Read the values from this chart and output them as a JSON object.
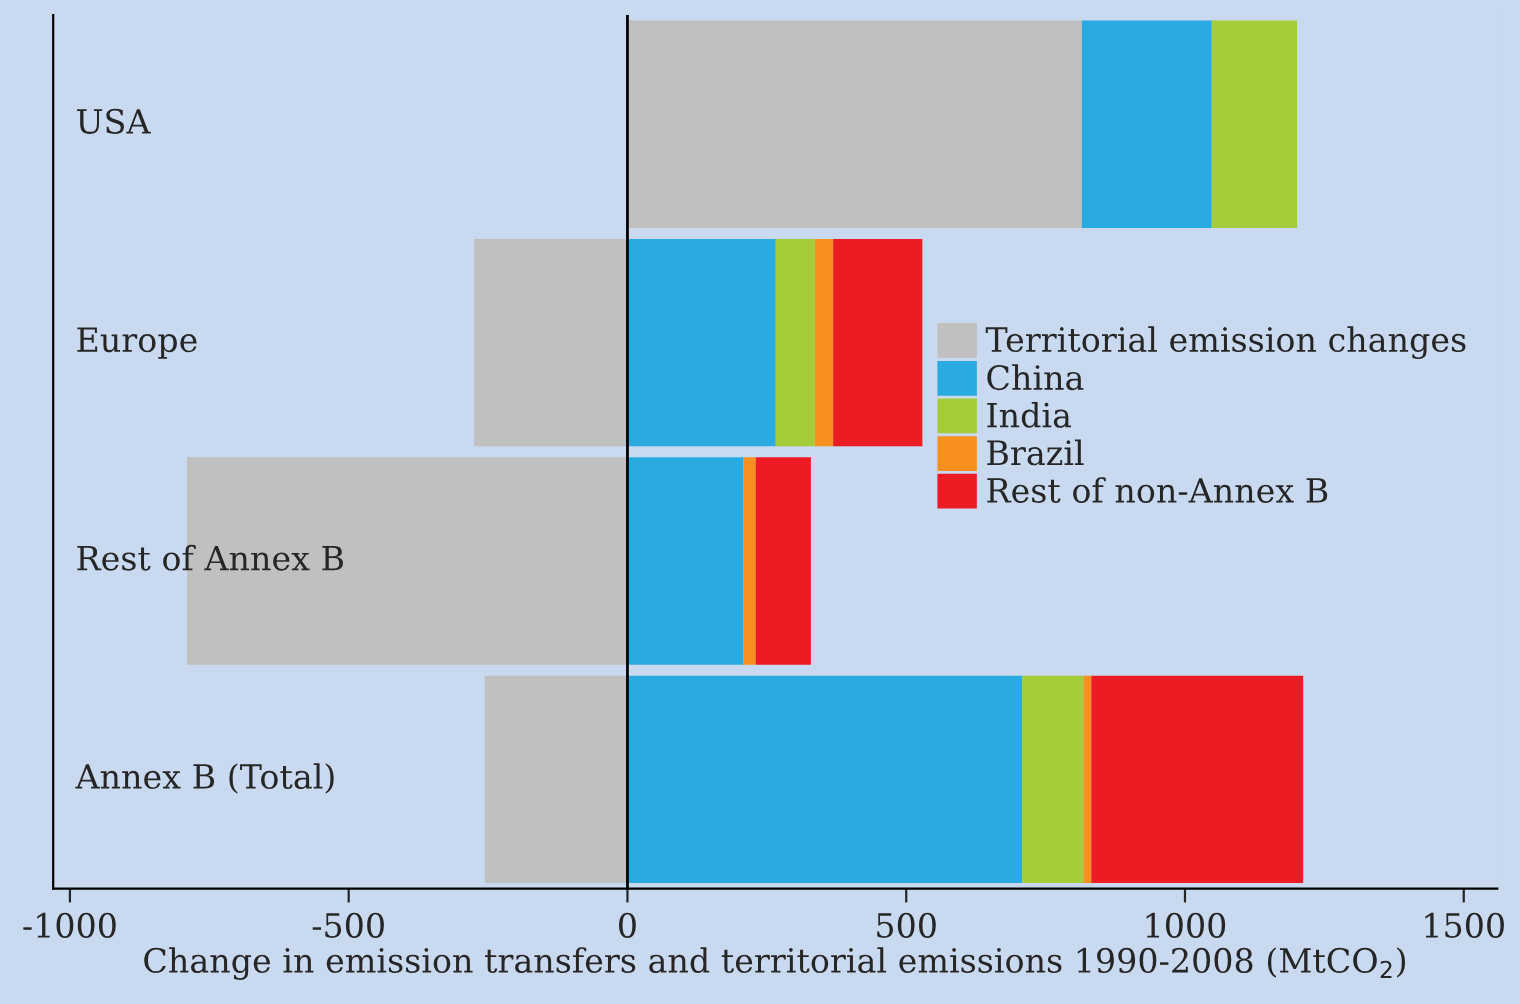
{
  "chart_data": {
    "type": "bar",
    "orientation": "horizontal",
    "stacked": true,
    "categories": [
      "USA",
      "Europe",
      "Rest of Annex B",
      "Annex B (Total)"
    ],
    "series": [
      {
        "name": "Territorial emission changes",
        "color": "#c0c0c0",
        "values": [
          815,
          -275,
          -790,
          -256
        ]
      },
      {
        "name": "China",
        "color": "#29abe2",
        "values": [
          233,
          266,
          208,
          708
        ]
      },
      {
        "name": "India",
        "color": "#a5cd39",
        "values": [
          153,
          70,
          null,
          110
        ]
      },
      {
        "name": "Brazil",
        "color": "#f7901e",
        "values": [
          null,
          33,
          22,
          14
        ]
      },
      {
        "name": "Rest of non-Annex B",
        "color": "#ed1c24",
        "values": [
          null,
          160,
          99,
          380
        ]
      }
    ],
    "xlabel": "Change in emission transfers and territorial emissions 1990-2008 (MtCO$_{2}$)",
    "xlim": [
      -1030,
      1560
    ],
    "xticks": [
      {
        "value": -1000,
        "label": "-1000"
      },
      {
        "value": -500,
        "label": "-500"
      },
      0,
      500,
      1000,
      1500
    ],
    "ref_lines": [
      {
        "axis": "x",
        "value": 0,
        "color": "#000000"
      }
    ],
    "grid": false,
    "legend": "right"
  }
}
